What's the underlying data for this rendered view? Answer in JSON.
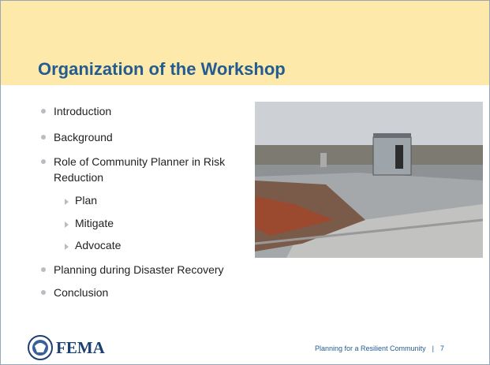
{
  "header": {
    "title": "Organization of the Workshop"
  },
  "bullets": [
    {
      "text": "Introduction"
    },
    {
      "text": "Background"
    },
    {
      "text": "Role of Community Planner in Risk Reduction",
      "subitems": [
        "Plan",
        "Mitigate",
        "Advocate"
      ]
    },
    {
      "text": "Planning during Disaster Recovery"
    },
    {
      "text": "Conclusion"
    }
  ],
  "footer": {
    "logo": "FEMA",
    "caption": "Planning for a Resilient Community",
    "separator": "|",
    "page": "7"
  }
}
